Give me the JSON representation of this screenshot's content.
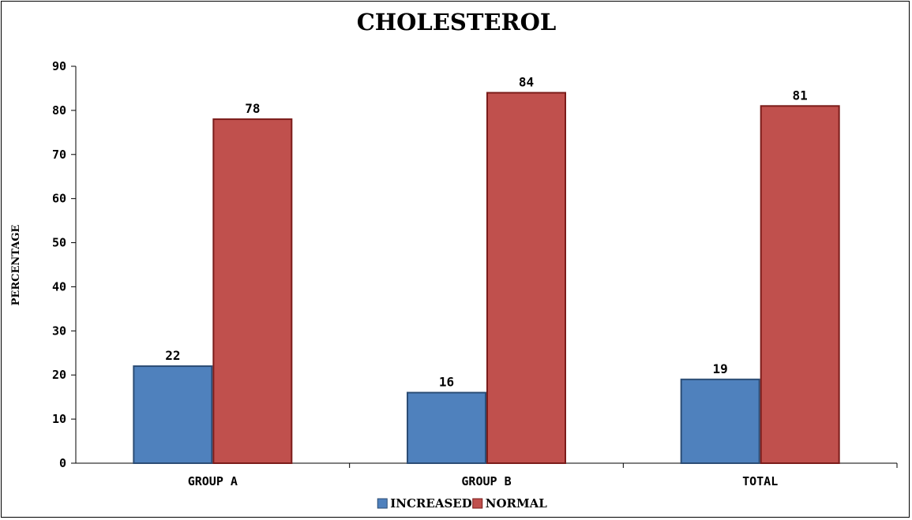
{
  "chart_data": {
    "type": "bar",
    "title": "CHOLESTEROL",
    "ylabel": "PERCENTAGE",
    "xlabel": "",
    "ylim": [
      0,
      90
    ],
    "yticks": [
      0,
      10,
      20,
      30,
      40,
      50,
      60,
      70,
      80,
      90
    ],
    "grid": false,
    "legend_position": "bottom",
    "categories": [
      "GROUP A",
      "GROUP B",
      "TOTAL"
    ],
    "series": [
      {
        "name": "INCREASED",
        "color": "#4f81bd",
        "edge_color": "#2c4d75",
        "values": [
          22,
          16,
          19
        ]
      },
      {
        "name": "NORMAL",
        "color": "#c0504d",
        "edge_color": "#7b1c1a",
        "values": [
          78,
          84,
          81
        ]
      }
    ]
  }
}
